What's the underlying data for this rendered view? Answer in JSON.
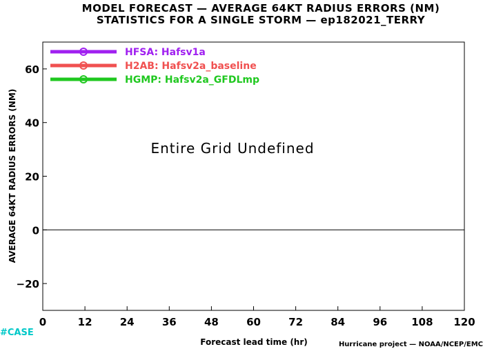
{
  "chart_data": {
    "type": "line",
    "title": "MODEL FORECAST — AVERAGE 64KT RADIUS ERRORS (NM)",
    "subtitle": "STATISTICS FOR A SINGLE STORM — ep182021_TERRY",
    "xlabel": "Forecast lead time (hr)",
    "ylabel": "AVERAGE 64KT RADIUS ERRORS (NM)",
    "x_ticks": [
      0,
      12,
      24,
      36,
      48,
      60,
      72,
      84,
      96,
      108,
      120
    ],
    "y_ticks": [
      -20,
      0,
      20,
      40,
      60
    ],
    "xlim": [
      0,
      120
    ],
    "ylim": [
      -30,
      70
    ],
    "grid": false,
    "zero_line": true,
    "legend_position": "top-left",
    "series": [
      {
        "name": "HFSA: Hafsv1a",
        "color": "#a020f0",
        "values": []
      },
      {
        "name": "H2AB: Hafsv2a_baseline",
        "color": "#f05050",
        "values": []
      },
      {
        "name": "HGMP: Hafsv2a_GFDLmp",
        "color": "#20c820",
        "values": []
      }
    ],
    "annotation": "Entire Grid Undefined"
  },
  "footer": {
    "left": "#CASE",
    "right": "Hurricane project — NOAA/NCEP/EMC"
  }
}
